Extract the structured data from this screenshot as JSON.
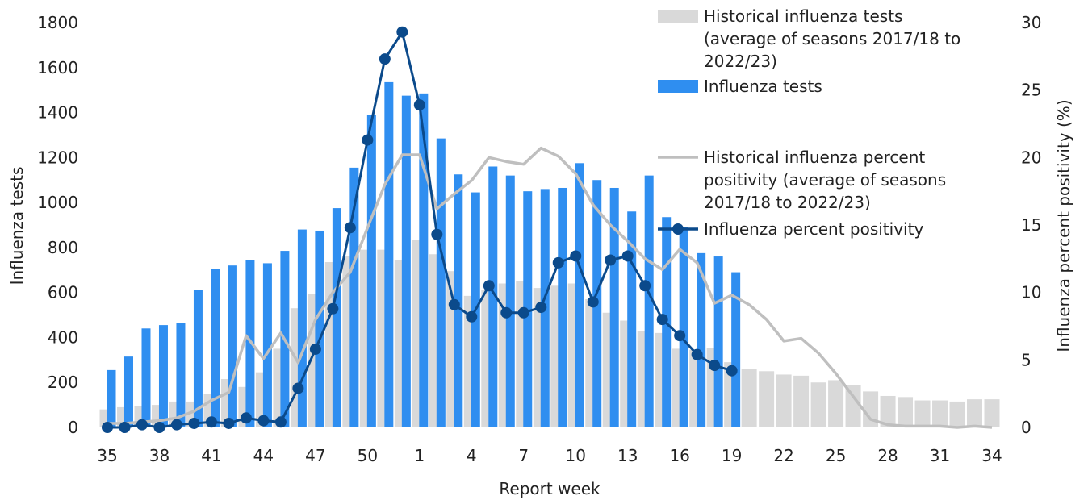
{
  "chart_data": {
    "type": "combo",
    "x_label": "Report week",
    "y_label": "Influenza tests",
    "y2_label": "Influenza percent positivity (%)",
    "categories": [
      "35",
      null,
      null,
      "38",
      null,
      null,
      "41",
      null,
      null,
      "44",
      null,
      null,
      "47",
      null,
      null,
      "50",
      null,
      null,
      "1",
      null,
      null,
      "4",
      null,
      null,
      "7",
      null,
      null,
      "10",
      null,
      null,
      "13",
      null,
      null,
      "16",
      null,
      null,
      "19",
      null,
      null,
      "22",
      null,
      null,
      "25",
      null,
      null,
      "28",
      null,
      null,
      "31",
      null,
      null,
      "34"
    ],
    "ylim": [
      0,
      1800
    ],
    "yticks": [
      0,
      200,
      400,
      600,
      800,
      1000,
      1200,
      1400,
      1600,
      1800
    ],
    "y2lim": [
      0,
      30
    ],
    "y2ticks": [
      0,
      5,
      10,
      15,
      20,
      25,
      30
    ],
    "grid": false,
    "series": [
      {
        "name": "Historical influenza tests (average of seasons 2017/18 to 2022/23)",
        "type": "bar",
        "color": "#d9d9d9",
        "values": [
          80,
          90,
          95,
          100,
          115,
          115,
          150,
          215,
          180,
          245,
          350,
          530,
          595,
          735,
          760,
          790,
          790,
          745,
          835,
          770,
          695,
          585,
          610,
          640,
          650,
          620,
          630,
          640,
          570,
          510,
          475,
          430,
          420,
          350,
          345,
          355,
          290,
          260,
          250,
          235,
          230,
          200,
          210,
          190,
          160,
          140,
          135,
          120,
          120,
          115,
          125,
          125
        ]
      },
      {
        "name": "Influenza tests",
        "type": "bar",
        "color": "#2f8ef0",
        "values": [
          255,
          315,
          440,
          455,
          465,
          610,
          705,
          720,
          745,
          730,
          785,
          880,
          875,
          975,
          1155,
          1390,
          1535,
          1475,
          1485,
          1285,
          1125,
          1045,
          1160,
          1120,
          1050,
          1060,
          1065,
          1175,
          1100,
          1065,
          960,
          1120,
          935,
          890,
          775,
          760,
          690,
          null,
          null,
          null,
          null,
          null,
          null,
          null,
          null,
          null,
          null,
          null,
          null,
          null,
          null,
          null
        ]
      },
      {
        "name": "Historical influenza percent positivity (average of seasons 2017/18 to 2022/23)",
        "type": "line",
        "axis": "y2",
        "color": "#bfbfbf",
        "values": [
          0.3,
          0.3,
          0.4,
          0.5,
          0.7,
          1.2,
          2.0,
          2.6,
          6.8,
          5.1,
          7.0,
          4.8,
          8.0,
          10.0,
          11.5,
          14.8,
          18.0,
          20.2,
          20.2,
          16.2,
          17.3,
          18.3,
          20.0,
          19.7,
          19.5,
          20.7,
          20.1,
          18.8,
          16.5,
          15.0,
          13.8,
          12.5,
          11.7,
          13.2,
          12.2,
          9.2,
          9.8,
          9.1,
          8.0,
          6.4,
          6.6,
          5.5,
          4.0,
          2.3,
          0.6,
          0.2,
          0.1,
          0.1,
          0.1,
          0.0,
          0.1,
          0.0
        ]
      },
      {
        "name": "Influenza percent positivity",
        "type": "line",
        "markers": true,
        "axis": "y2",
        "color": "#0b4a8b",
        "values": [
          0.0,
          0.0,
          0.2,
          0.0,
          0.2,
          0.3,
          0.4,
          0.3,
          0.7,
          0.5,
          0.4,
          2.9,
          5.8,
          8.8,
          14.8,
          21.3,
          27.3,
          29.3,
          23.9,
          14.3,
          9.1,
          8.2,
          10.5,
          8.5,
          8.5,
          8.9,
          12.2,
          12.7,
          9.3,
          12.4,
          12.7,
          10.5,
          8.0,
          6.8,
          5.4,
          4.6,
          4.2,
          null,
          null,
          null,
          null,
          null,
          null,
          null,
          null,
          null,
          null,
          null,
          null,
          null,
          null,
          null
        ]
      }
    ]
  }
}
